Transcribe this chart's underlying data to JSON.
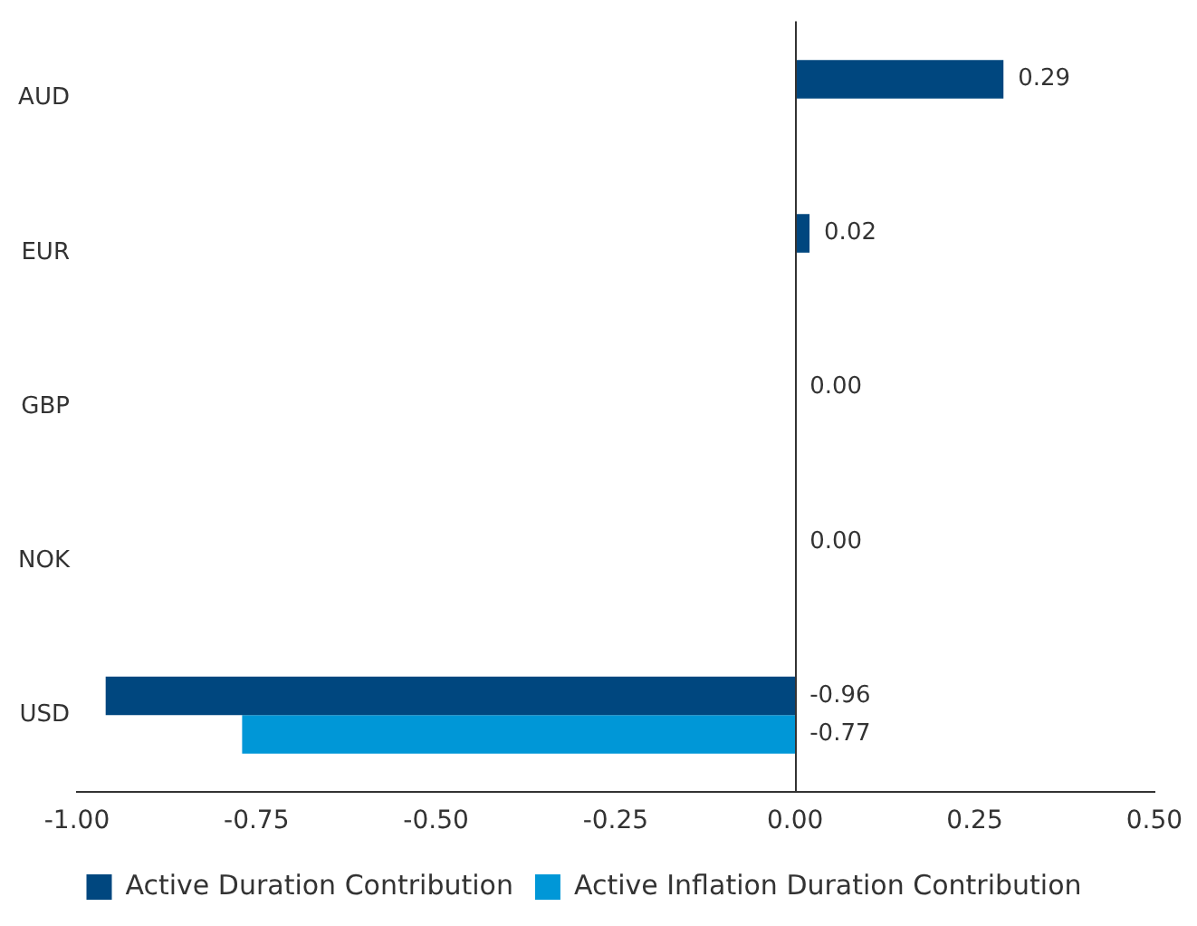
{
  "chart_data": {
    "type": "bar",
    "orientation": "horizontal",
    "categories": [
      "AUD",
      "EUR",
      "GBP",
      "NOK",
      "USD"
    ],
    "series": [
      {
        "name": "Active Duration Contribution",
        "color": "#00477f",
        "values": [
          0.29,
          0.02,
          0.0,
          0.0,
          -0.96
        ],
        "value_labels": [
          "0.29",
          "0.02",
          "0.00",
          "0.00",
          "-0.96"
        ]
      },
      {
        "name": "Active Inflation Duration Contribution",
        "color": "#0097d7",
        "values": [
          0,
          0,
          0,
          0,
          -0.77
        ],
        "value_labels": [
          null,
          null,
          null,
          null,
          "-0.77"
        ]
      }
    ],
    "xlim": [
      -1,
      0.5
    ],
    "xticks": [
      {
        "value": -1,
        "label": "-1.00"
      },
      {
        "value": -0.75,
        "label": "-0.75"
      },
      {
        "value": -0.5,
        "label": "-0.50"
      },
      {
        "value": -0.25,
        "label": "-0.25"
      },
      {
        "value": 0,
        "label": "0.00"
      },
      {
        "value": 0.25,
        "label": "0.25"
      },
      {
        "value": 0.5,
        "label": "0.50"
      }
    ],
    "ref_lines": [
      {
        "axis": "x",
        "value": 0,
        "color": "#333333"
      }
    ],
    "legend": "bottom"
  }
}
